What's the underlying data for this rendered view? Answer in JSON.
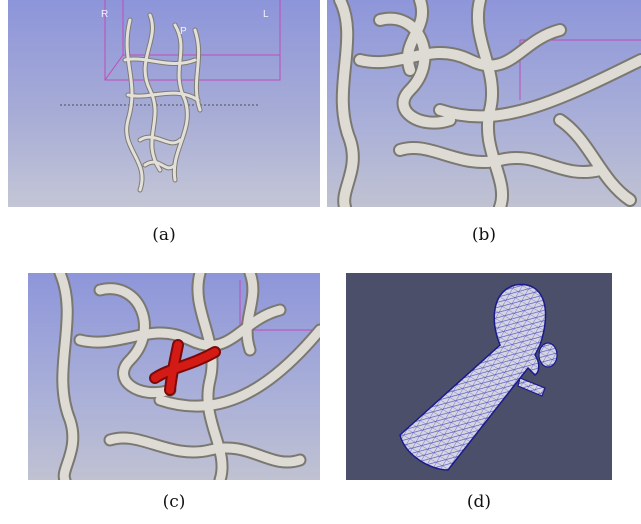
{
  "figure": {
    "panels": [
      {
        "caption": "(a)",
        "labels": [
          "R",
          "L",
          "P"
        ]
      },
      {
        "caption": "(b)"
      },
      {
        "caption": "(c)"
      },
      {
        "caption": "(d)"
      }
    ]
  }
}
